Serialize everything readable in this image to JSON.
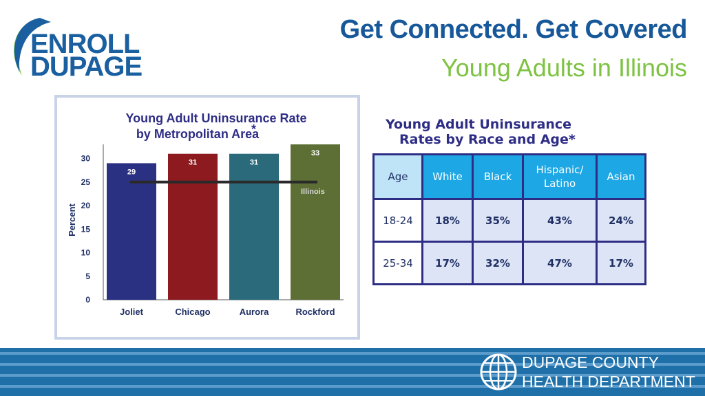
{
  "logo": {
    "line1": "ENROLL",
    "line2": "DUPAGE"
  },
  "header": {
    "title": "Get Connected. Get Covered",
    "subtitle": "Young Adults in Illinois"
  },
  "colors": {
    "title_blue": "#17589a",
    "subtitle_green": "#7dc242",
    "navy": "#2e2d86",
    "table_header_blue": "#1da7e4",
    "footer_blue": "#1f6fa8"
  },
  "chart_data": {
    "type": "bar",
    "title_line1": "Young Adult Uninsurance Rate",
    "title_line2": "by Metropolitan Area",
    "title_mark": "*",
    "ylabel": "Percent",
    "xlabel": "",
    "categories": [
      "Joliet",
      "Chicago",
      "Aurora",
      "Rockford"
    ],
    "values": [
      29,
      31,
      31,
      33
    ],
    "bar_colors": [
      "#2a3183",
      "#8c1a1f",
      "#2b6a7a",
      "#5d6f35"
    ],
    "ylim": [
      0,
      33
    ],
    "yticks": [
      0,
      5,
      10,
      15,
      20,
      25,
      30
    ],
    "reference_line": {
      "label": "Illinois",
      "value": 25
    },
    "grid": false,
    "legend": "none"
  },
  "table": {
    "title_line1": "Young Adult Uninsurance",
    "title_line2": "Rates by Race and Age*",
    "headers": [
      "Age",
      "White",
      "Black",
      "Hispanic/\nLatino",
      "Asian"
    ],
    "rows": [
      [
        "18-24",
        "18%",
        "35%",
        "43%",
        "24%"
      ],
      [
        "25-34",
        "17%",
        "32%",
        "47%",
        "17%"
      ]
    ]
  },
  "footer": {
    "line1": "DUPAGE COUNTY",
    "line2": "HEALTH DEPARTMENT"
  }
}
